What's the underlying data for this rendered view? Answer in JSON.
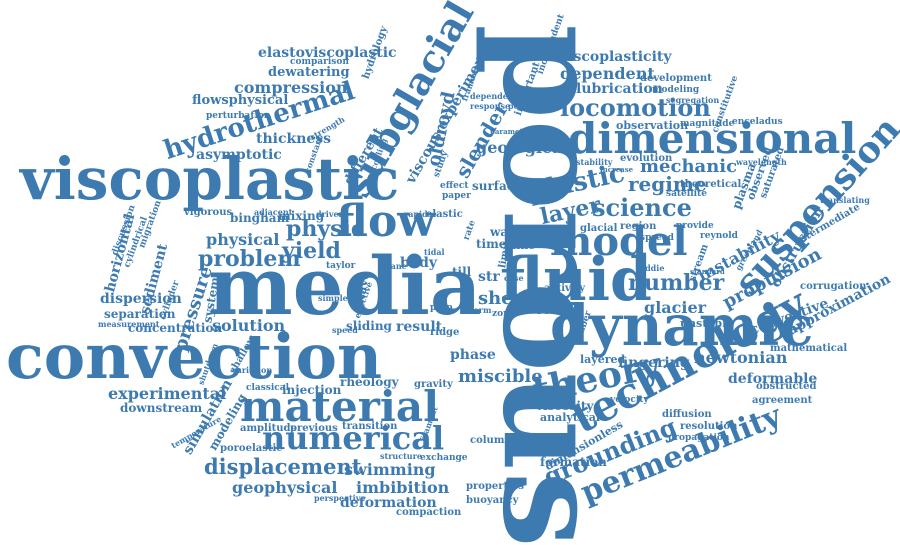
{
  "colors": {
    "word": "#3d7ab0",
    "word_light": "#5b92c2",
    "background": "#ffffff"
  },
  "words": {
    "viscoplastic": "viscoplastic",
    "convection": "convection",
    "media": "media",
    "porous": "porous",
    "dynamic": "dynamic",
    "fluid": "fluid",
    "material": "material",
    "technology": "technology",
    "dimensional": "dimensional",
    "suspension": "suspension",
    "model": "model",
    "flow": "flow",
    "subglacial": "subglacial",
    "theory": "theory",
    "numerical": "numerical",
    "permeability": "permeability",
    "hydrothermal": "hydrothermal",
    "locomotion": "locomotion",
    "plastic": "plastic",
    "science": "science",
    "layer": "layer",
    "grounding": "grounding",
    "displacement": "displacement",
    "problem": "problem",
    "yield": "yield",
    "physic": "physic",
    "physical": "physical",
    "experimental": "experimental",
    "sheet": "sheet",
    "number": "number",
    "glacier": "glacier",
    "miscible": "miscible",
    "geophysical": "geophysical",
    "imbibition": "imbibition",
    "deformation": "deformation",
    "swimming": "swimming",
    "pressure": "pressure",
    "solution": "solution",
    "propulsion": "propulsion",
    "instability": "instability",
    "obstruction": "obstruction",
    "convective": "convective",
    "approximation": "approximation",
    "newtonian": "newtonian",
    "fingering": "fingering",
    "deformable": "deformable",
    "regime": "regime",
    "mechanic": "mechanic",
    "compression": "compression",
    "elastoviscoplastic": "elastoviscoplastic",
    "viscoplasticity": "viscoplasticity",
    "dependent": "dependent",
    "lubrication": "lubrication",
    "dewatering": "dewatering",
    "flowsphysical": "flowsphysical",
    "asymptotic": "asymptotic",
    "thickness": "thickness",
    "geological": "geological",
    "slender": "slender",
    "oldroyd": "oldroyd",
    "viscous_experiment": "viscous experiment",
    "different": "different",
    "sediment": "sediment",
    "horizontal": "horizontal",
    "dispersion": "dispersion",
    "separation": "separation",
    "concentration": "concentration",
    "system": "system",
    "mixing": "mixing",
    "bingham": "bingham",
    "vigorous": "vigorous",
    "water": "water",
    "time": "time",
    "line": "line",
    "body": "body",
    "surface": "surface",
    "str": "str",
    "limit": "limit",
    "till": "till",
    "result": "result",
    "sliding": "sliding",
    "wave": "wave",
    "scale": "scale",
    "activity": "activity",
    "phase": "phase",
    "plume": "plume",
    "layered": "layered",
    "viscosity": "viscosity",
    "analytical": "analytical",
    "velocity": "velocity",
    "columnar_analysis": "columnar analysis",
    "exchange": "exchange",
    "formation": "formation",
    "dimensionless": "dimensionless",
    "properties": "properties",
    "buoyancy": "buoyancy",
    "compaction": "compaction",
    "rheology": "rheology",
    "gravity": "gravity",
    "injection": "injection",
    "classical": "classical",
    "simulation": "simulation",
    "modeling": "modeling",
    "downstream": "downstream",
    "amplitude": "amplitude",
    "previous": "previous",
    "transition": "transition",
    "poroelastic": "poroelastic",
    "shallow": "shallow",
    "mathematical": "mathematical",
    "agreement": "agreement",
    "obstructed": "obstructed",
    "corrugation": "corrugation",
    "intermediate": "intermediate",
    "stream": "stream",
    "unstable": "unstable",
    "diffusion": "diffusion",
    "resolution": "resolution",
    "propagation": "propagation",
    "theoretical": "theoretical",
    "evolution": "evolution",
    "satellite": "satellite",
    "observation": "observation",
    "magnitude": "magnitude",
    "enceladus": "enceladus",
    "development": "development",
    "modeling_2": "modeling",
    "segregation": "segregation",
    "constitutive": "constitutive",
    "plasma": "plasma",
    "observed": "observed",
    "saturated": "saturated",
    "region": "region",
    "provide": "provide",
    "reynold": "reynold",
    "greenland": "greenland",
    "glacial": "glacial",
    "important": "important",
    "independent": "independent",
    "framework": "framework",
    "dependence": "dependence",
    "response": "response",
    "possible": "possible",
    "comparison": "comparison",
    "hydrology": "hydrology",
    "perturbation": "perturbation",
    "constant": "constant",
    "strength": "strength",
    "cooling": "cooling",
    "study": "study",
    "effect": "effect",
    "paper": "paper",
    "elastic": "elastic",
    "rapid": "rapid",
    "driven": "driven",
    "adjacent": "adjacent",
    "taylor": "taylor",
    "ridge": "ridge",
    "measurement": "measurement",
    "cylinder": "cylinder",
    "discussion": "discussion",
    "migration": "migration",
    "cylindrical": "cylindrical",
    "effective": "effective",
    "simple": "simple",
    "speed": "speed",
    "structure": "structure",
    "filament": "filament",
    "temperature": "temperature",
    "perspective": "perspective",
    "shutdown": "shutdown",
    "variation": "variation",
    "tidal": "tidal",
    "plane": "plane",
    "fiber": "fiber",
    "translating": "translating",
    "wavelength": "wavelength",
    "spread": "spread",
    "eddie": "eddie",
    "standard": "standard",
    "stability": "stability",
    "increase": "increase",
    "parameter": "parameter",
    "zone": "zone",
    "pulp": "pulp",
    "rate": "rate",
    "case": "case",
    "form": "form"
  }
}
